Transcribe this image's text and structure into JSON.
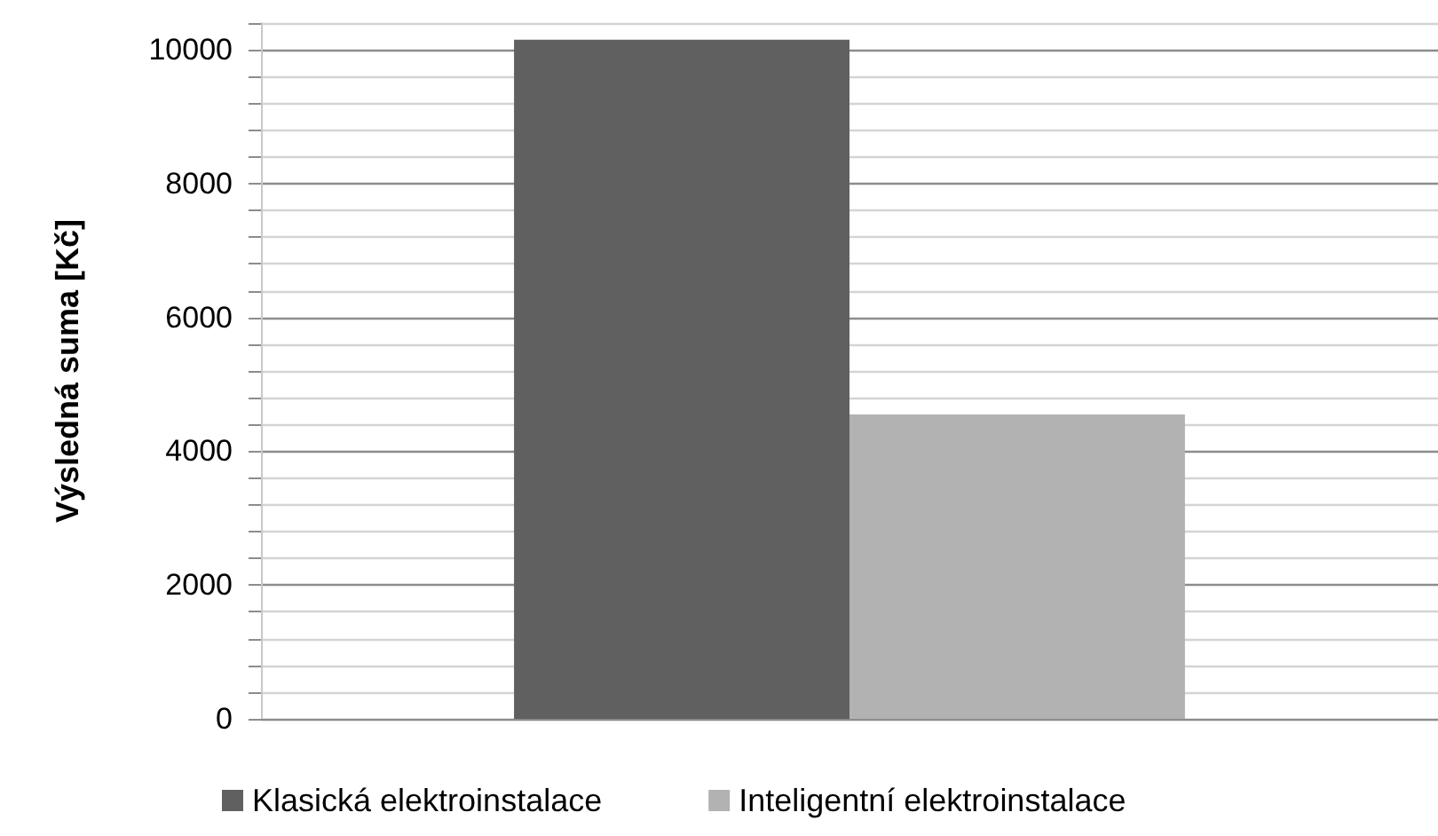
{
  "chart_data": {
    "type": "bar",
    "ylabel": "Výsledná suma [Kč]",
    "categories": [
      null
    ],
    "series": [
      {
        "name": "Klasická elektroinstalace",
        "color": "#606060",
        "values": [
          10150
        ]
      },
      {
        "name": "Inteligentní elektroinstalace",
        "color": "#b2b2b2",
        "values": [
          4550
        ]
      }
    ],
    "ylim": [
      0,
      10400
    ],
    "yticks": [
      0,
      {
        "value": 400,
        "label": null
      },
      {
        "value": 800,
        "label": null
      },
      {
        "value": 1200,
        "label": null
      },
      {
        "value": 1600,
        "label": null
      },
      2000,
      {
        "value": 2400,
        "label": null
      },
      {
        "value": 2800,
        "label": null
      },
      {
        "value": 3200,
        "label": null
      },
      {
        "value": 3600,
        "label": null
      },
      4000,
      {
        "value": 4400,
        "label": null
      },
      {
        "value": 4800,
        "label": null
      },
      {
        "value": 5200,
        "label": null
      },
      {
        "value": 5600,
        "label": null
      },
      6000,
      {
        "value": 6400,
        "label": null
      },
      {
        "value": 6800,
        "label": null
      },
      {
        "value": 7200,
        "label": null
      },
      {
        "value": 7600,
        "label": null
      },
      8000,
      {
        "value": 8400,
        "label": null
      },
      {
        "value": 8800,
        "label": null
      },
      {
        "value": 9200,
        "label": null
      },
      {
        "value": 9600,
        "label": null
      },
      10000,
      {
        "value": 10400,
        "label": null
      }
    ],
    "grid": "y",
    "legend": "bottom"
  }
}
